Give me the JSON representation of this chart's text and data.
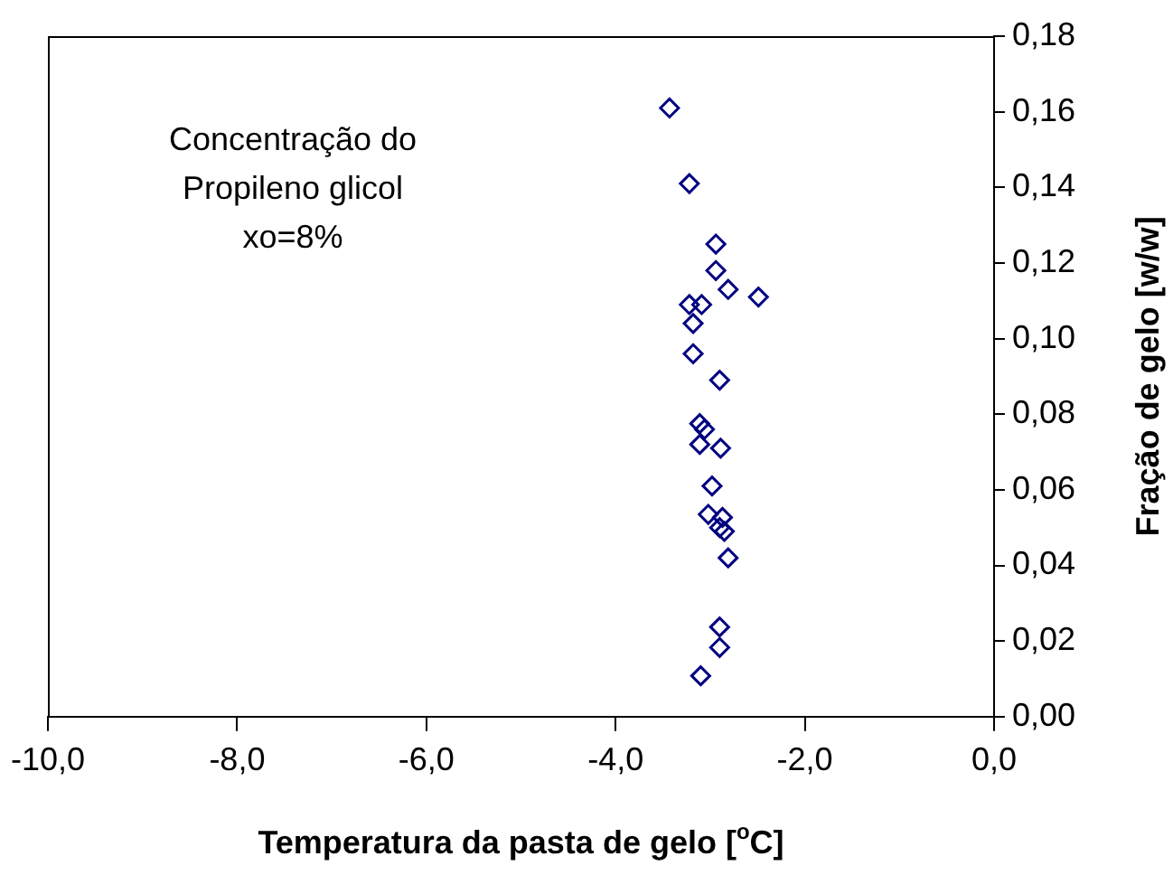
{
  "chart_data": {
    "type": "scatter",
    "xlabel": "Temperatura da pasta de gelo [$^{o}$C]",
    "ylabel": "Fração de gelo [w/w]",
    "annotations": [
      "Concentração do\nPropileno glicol\nxo=8%"
    ],
    "x": [
      -3.43,
      -3.22,
      -2.94,
      -2.94,
      -2.81,
      -2.49,
      -3.09,
      -3.22,
      -3.18,
      -3.18,
      -2.9,
      -3.11,
      -3.06,
      -3.11,
      -2.89,
      -2.98,
      -3.02,
      -2.87,
      -2.9,
      -2.85,
      -2.81,
      -2.9,
      -2.9,
      -3.1
    ],
    "series": [
      {
        "color": "#000080",
        "marker": "diamond",
        "values": [
          0.161,
          0.141,
          0.125,
          0.118,
          0.113,
          0.111,
          0.109,
          0.109,
          0.104,
          0.096,
          0.089,
          0.0775,
          0.076,
          0.072,
          0.071,
          0.061,
          0.0535,
          0.0527,
          0.05,
          0.049,
          0.042,
          0.0237,
          0.0183,
          0.0108
        ]
      }
    ],
    "xlim": [
      -10,
      0
    ],
    "xticks": [
      {
        "value": -10,
        "label": "-10,0"
      },
      {
        "value": -8,
        "label": "-8,0"
      },
      {
        "value": -6,
        "label": "-6,0"
      },
      {
        "value": -4,
        "label": "-4,0"
      },
      {
        "value": -2,
        "label": "-2,0"
      },
      {
        "value": 0,
        "label": "0,0"
      }
    ],
    "ylim": [
      0,
      0.18
    ],
    "yticks": [
      {
        "value": 0,
        "label": "0,00"
      },
      {
        "value": 0.02,
        "label": "0,02"
      },
      {
        "value": 0.04,
        "label": "0,04"
      },
      {
        "value": 0.06,
        "label": "0,06"
      },
      {
        "value": 0.08,
        "label": "0,08"
      },
      {
        "value": 0.1,
        "label": "0,10"
      },
      {
        "value": 0.12,
        "label": "0,12"
      },
      {
        "value": 0.14,
        "label": "0,14"
      },
      {
        "value": 0.16,
        "label": "0,16"
      },
      {
        "value": 0.18,
        "label": "0,18"
      }
    ],
    "grid": false,
    "legend": false
  }
}
